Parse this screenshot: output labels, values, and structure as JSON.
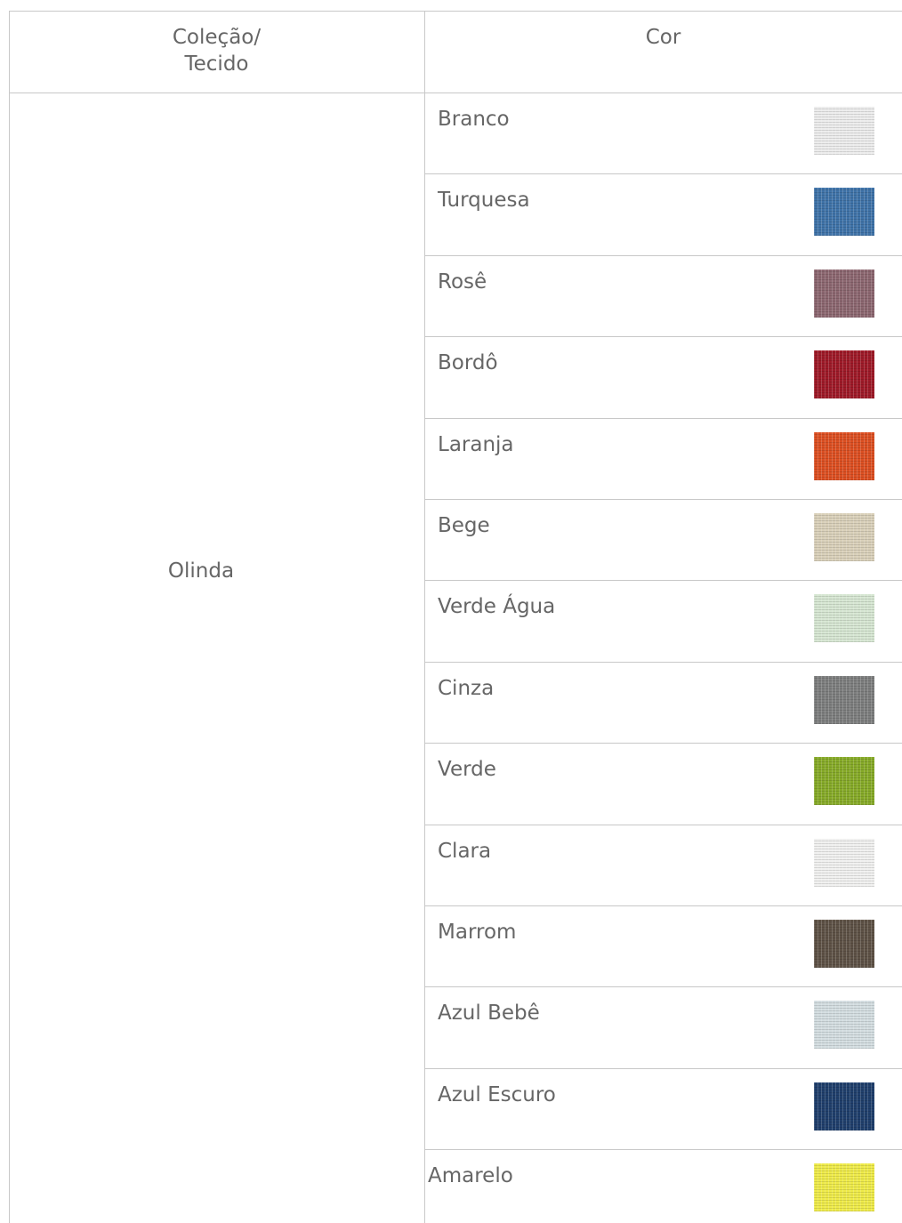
{
  "table": {
    "header": [
      "Coleção/ Tecido",
      "Cor"
    ],
    "collection": "Olinda",
    "rows": [
      {
        "name": "Branco",
        "swatch": "#ececec"
      },
      {
        "name": "Turquesa",
        "swatch": "#3f73a8"
      },
      {
        "name": "Rosê",
        "swatch": "#8c6770"
      },
      {
        "name": "Bordô",
        "swatch": "#9e1a28"
      },
      {
        "name": "Laranja",
        "swatch": "#dc4f22"
      },
      {
        "name": "Bege",
        "swatch": "#d9d0b9"
      },
      {
        "name": "Verde Água",
        "swatch": "#d6e6d2"
      },
      {
        "name": "Cinza",
        "swatch": "#7d7e7e"
      },
      {
        "name": "Verde",
        "swatch": "#86aa28"
      },
      {
        "name": "Clara",
        "swatch": "#f0f0ef"
      },
      {
        "name": "Marrom",
        "swatch": "#5e5246"
      },
      {
        "name": "Azul Bebê",
        "swatch": "#d3dde0"
      },
      {
        "name": "Azul Escuro",
        "swatch": "#203f6c"
      },
      {
        "name": "Amarelo",
        "swatch": "#eeea49"
      }
    ]
  }
}
